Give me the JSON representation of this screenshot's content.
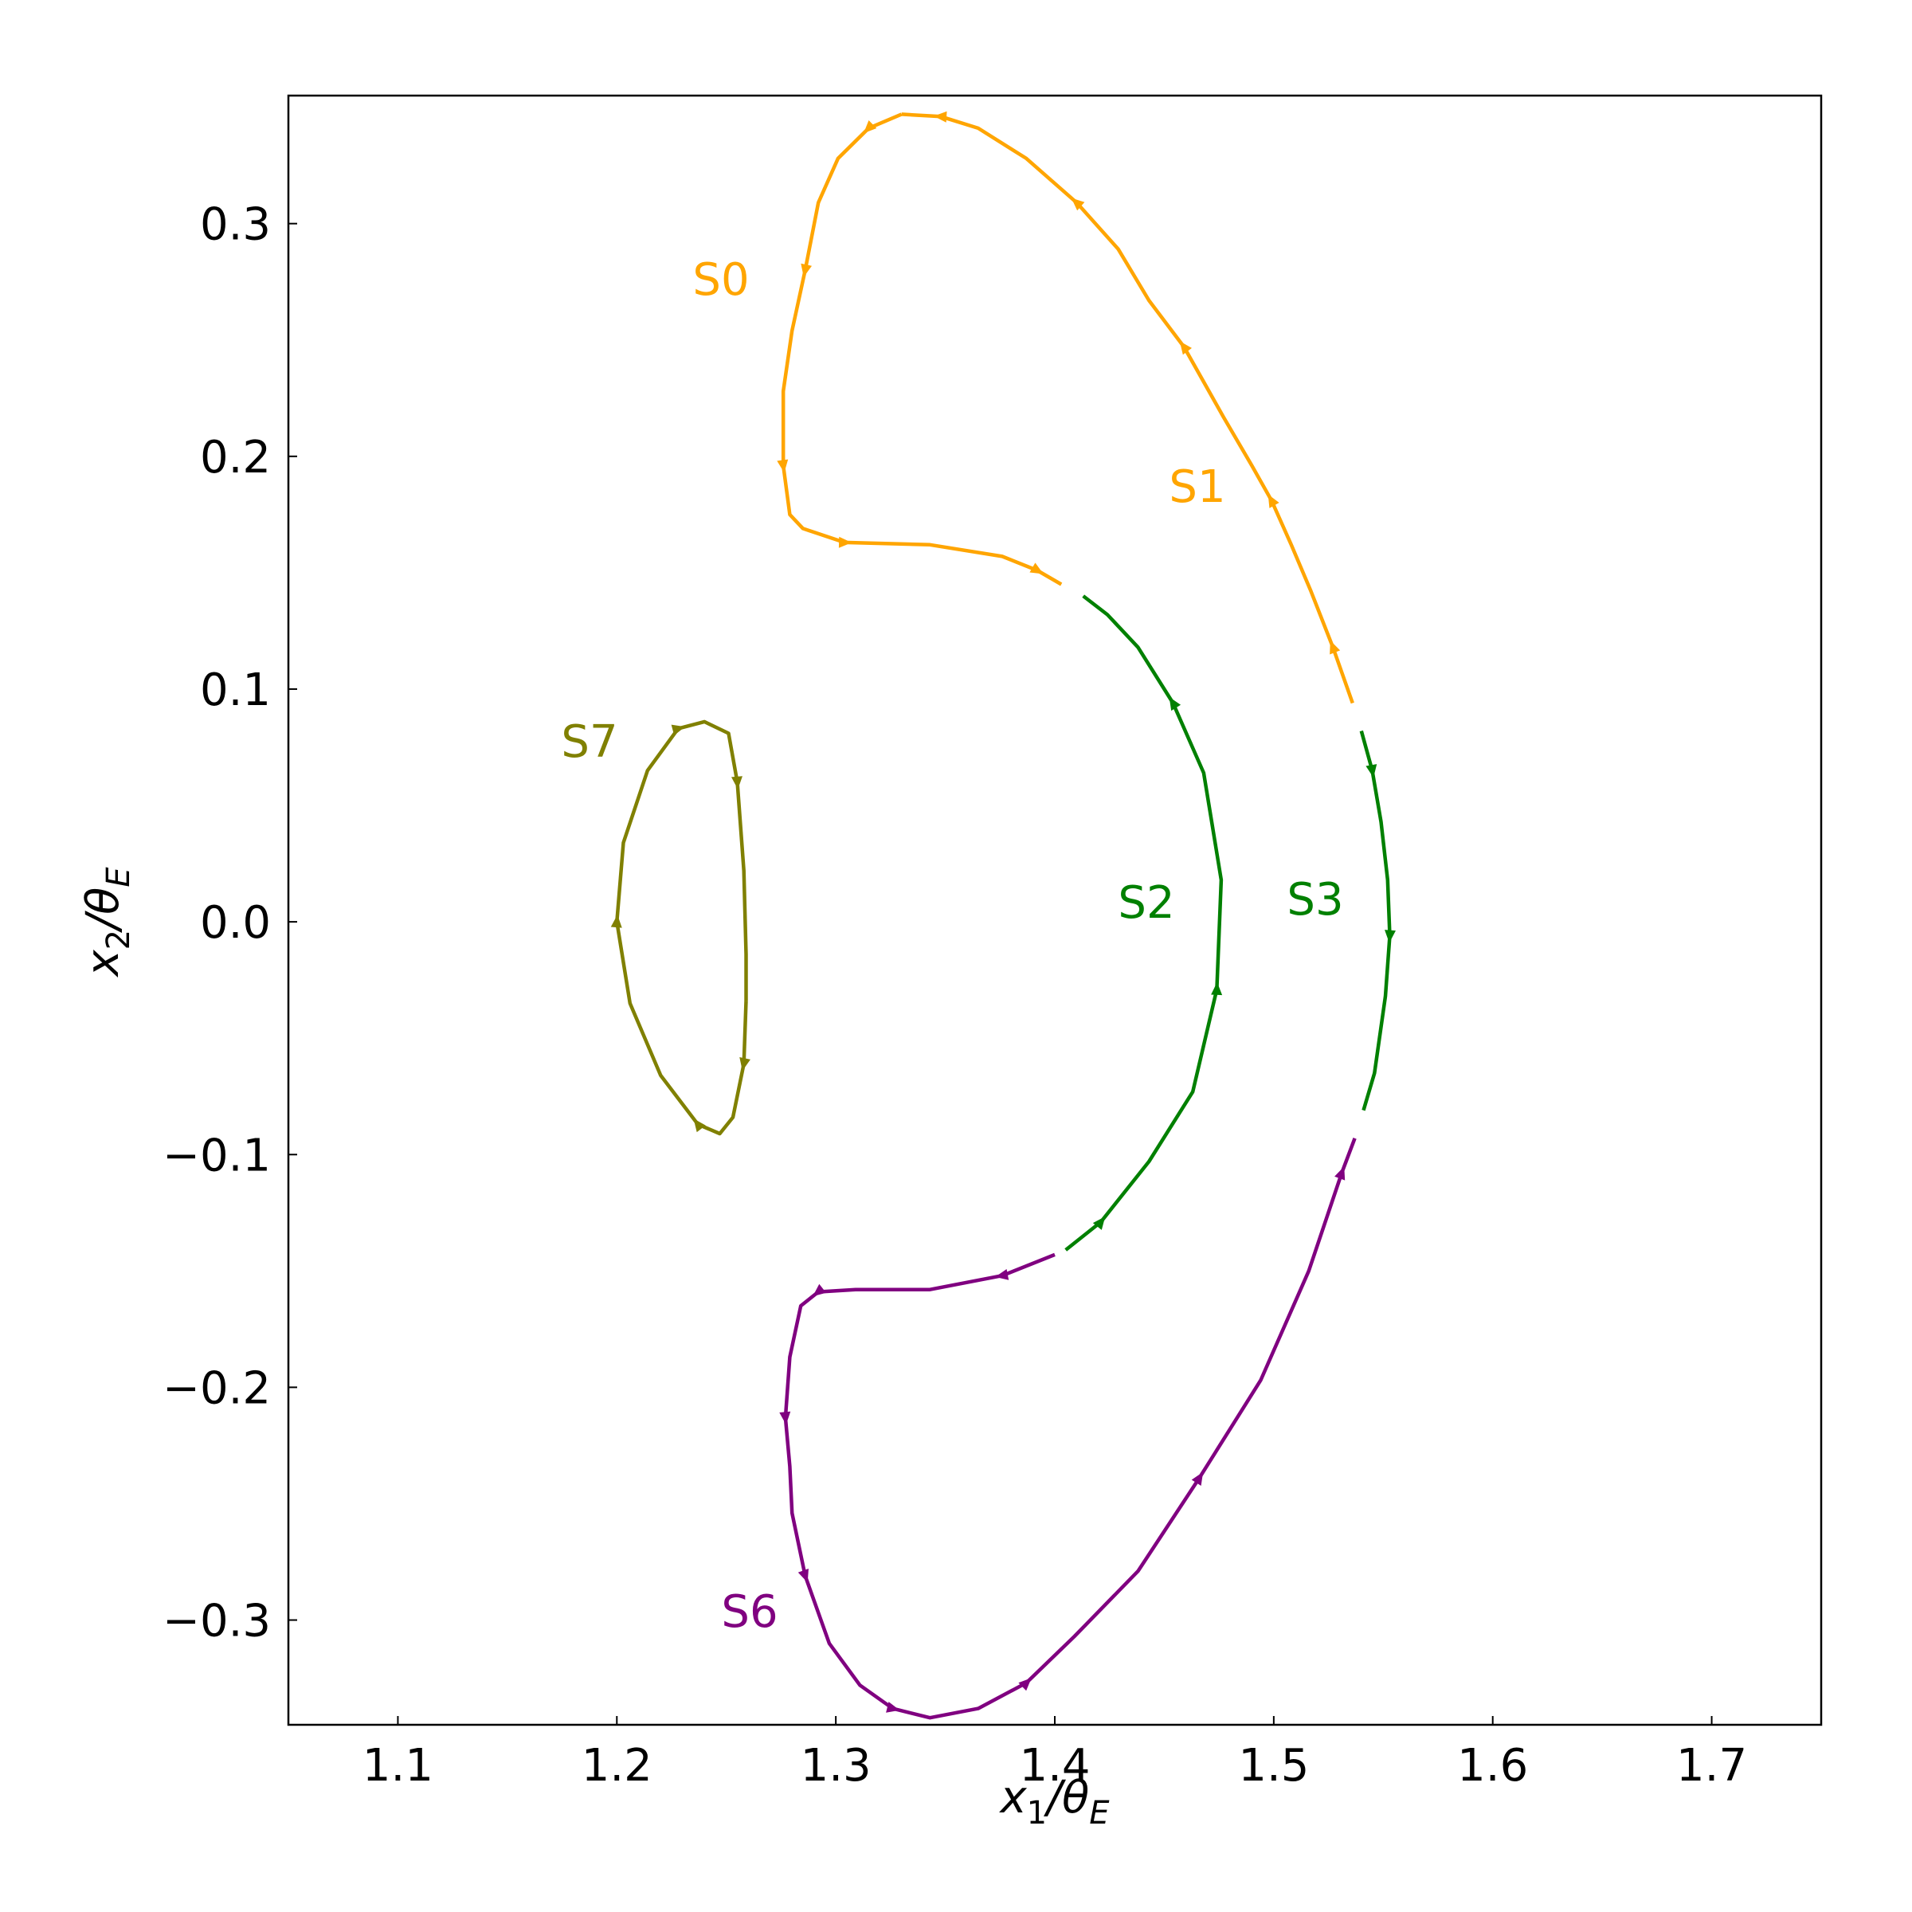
{
  "chart_data": {
    "type": "line",
    "xlabel": "x_1/θ_E",
    "ylabel": "x_2/θ_E",
    "xlim": [
      1.05,
      1.75
    ],
    "ylim": [
      -0.345,
      0.355
    ],
    "xticks": [
      1.1,
      1.2,
      1.3,
      1.4,
      1.5,
      1.6,
      1.7
    ],
    "yticks": [
      {
        "value": -0.3,
        "label": "−0.3"
      },
      {
        "value": -0.2,
        "label": "−0.2"
      },
      {
        "value": -0.1,
        "label": "−0.1"
      },
      {
        "value": 0,
        "label": "0.0"
      },
      0.1,
      0.2,
      0.3
    ],
    "series": [
      {
        "name": "S0",
        "color": "#ffa500",
        "x": [
          1.33,
          1.315,
          1.301,
          1.292,
          1.286,
          1.28,
          1.276,
          1.276,
          1.279,
          1.285,
          1.304,
          1.343,
          1.376,
          1.392,
          1.403
        ],
        "values": [
          0.347,
          0.341,
          0.328,
          0.309,
          0.28,
          0.254,
          0.228,
          0.196,
          0.175,
          0.169,
          0.163,
          0.162,
          0.157,
          0.151,
          0.145
        ]
      },
      {
        "name": "S1",
        "color": "#ffa500",
        "x": [
          1.536,
          1.527,
          1.517,
          1.508,
          1.499,
          1.49,
          1.477,
          1.459,
          1.443,
          1.429,
          1.41,
          1.387,
          1.365,
          1.348,
          1.33
        ],
        "values": [
          0.094,
          0.118,
          0.142,
          0.162,
          0.181,
          0.196,
          0.217,
          0.247,
          0.267,
          0.289,
          0.309,
          0.328,
          0.341,
          0.346,
          0.347
        ]
      },
      {
        "name": "S2",
        "color": "#008000",
        "x": [
          1.405,
          1.421,
          1.443,
          1.463,
          1.474,
          1.476,
          1.468,
          1.454,
          1.438,
          1.424,
          1.413
        ],
        "values": [
          -0.141,
          -0.129,
          -0.103,
          -0.073,
          -0.029,
          0.018,
          0.064,
          0.094,
          0.118,
          0.132,
          0.14
        ]
      },
      {
        "name": "S3",
        "color": "#008000",
        "x": [
          1.54,
          1.545,
          1.549,
          1.552,
          1.553,
          1.551,
          1.546,
          1.541
        ],
        "values": [
          0.082,
          0.065,
          0.043,
          0.018,
          -0.006,
          -0.032,
          -0.065,
          -0.081
        ]
      },
      {
        "name": "S6",
        "color": "#800080",
        "x": [
          1.4,
          1.376,
          1.343,
          1.309,
          1.292,
          1.284,
          1.279,
          1.277,
          1.279,
          1.28,
          1.286,
          1.297,
          1.311,
          1.326,
          1.343,
          1.365,
          1.387,
          1.409,
          1.438,
          1.466,
          1.494,
          1.516,
          1.531,
          1.537
        ],
        "values": [
          -0.143,
          -0.152,
          -0.158,
          -0.158,
          -0.159,
          -0.165,
          -0.187,
          -0.213,
          -0.234,
          -0.254,
          -0.281,
          -0.31,
          -0.328,
          -0.338,
          -0.342,
          -0.338,
          -0.327,
          -0.307,
          -0.279,
          -0.239,
          -0.197,
          -0.15,
          -0.108,
          -0.093
        ]
      },
      {
        "name": "S7",
        "color": "#808000",
        "x": [
          1.259,
          1.258,
          1.253,
          1.247,
          1.237,
          1.22,
          1.206,
          1.2,
          1.203,
          1.214,
          1.228,
          1.24,
          1.251,
          1.255,
          1.258,
          1.259,
          1.259
        ],
        "values": [
          -0.034,
          -0.061,
          -0.084,
          -0.091,
          -0.087,
          -0.066,
          -0.035,
          0.0,
          0.034,
          0.065,
          0.083,
          0.086,
          0.081,
          0.06,
          0.022,
          -0.014,
          -0.034
        ]
      }
    ]
  }
}
